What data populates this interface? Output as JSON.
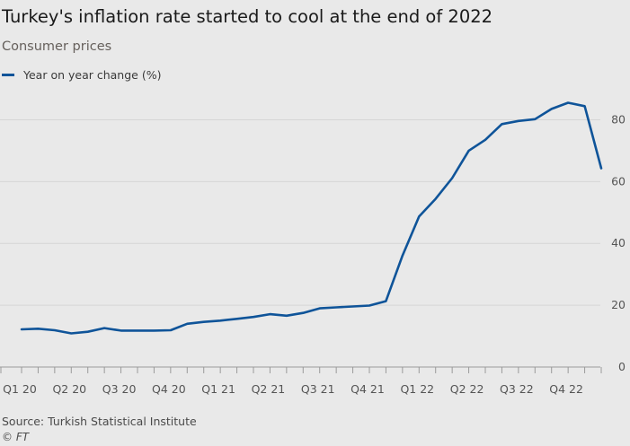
{
  "title": "Turkey's inflation rate started to cool at the end of 2022",
  "subtitle": "Consumer prices",
  "source": "Source: Turkish Statistical Institute",
  "copyright": "© FT",
  "colors": {
    "background": "#e9e9e9",
    "line": "#0f5499",
    "grid": "#d6d6d6"
  },
  "chart_data": {
    "type": "line",
    "title": "Turkey's inflation rate started to cool at the end of 2022",
    "subtitle": "Consumer prices",
    "xlabel": "",
    "ylabel": "",
    "ylim": [
      0,
      90
    ],
    "yticks": [
      0,
      20,
      40,
      60,
      80
    ],
    "y_axis_side": "right",
    "grid": true,
    "legend_position": "top-left",
    "x_tick_labels": [
      "Q1 20",
      "Q2 20",
      "Q3 20",
      "Q4 20",
      "Q1 21",
      "Q2 21",
      "Q3 21",
      "Q4 21",
      "Q1 22",
      "Q2 22",
      "Q3 22",
      "Q4 22"
    ],
    "x": [
      "Jan 2020",
      "Feb 2020",
      "Mar 2020",
      "Apr 2020",
      "May 2020",
      "Jun 2020",
      "Jul 2020",
      "Aug 2020",
      "Sep 2020",
      "Oct 2020",
      "Nov 2020",
      "Dec 2020",
      "Jan 2021",
      "Feb 2021",
      "Mar 2021",
      "Apr 2021",
      "May 2021",
      "Jun 2021",
      "Jul 2021",
      "Aug 2021",
      "Sep 2021",
      "Oct 2021",
      "Nov 2021",
      "Dec 2021",
      "Jan 2022",
      "Feb 2022",
      "Mar 2022",
      "Apr 2022",
      "May 2022",
      "Jun 2022",
      "Jul 2022",
      "Aug 2022",
      "Sep 2022",
      "Oct 2022",
      "Nov 2022",
      "Dec 2022"
    ],
    "series": [
      {
        "name": "Year on year change (%)",
        "values": [
          12.2,
          12.4,
          11.9,
          10.9,
          11.4,
          12.6,
          11.8,
          11.8,
          11.8,
          11.9,
          14.0,
          14.6,
          15.0,
          15.6,
          16.2,
          17.1,
          16.6,
          17.5,
          19.0,
          19.3,
          19.6,
          19.9,
          21.3,
          36.1,
          48.7,
          54.4,
          61.1,
          70.0,
          73.5,
          78.6,
          79.6,
          80.2,
          83.5,
          85.5,
          84.4,
          64.3
        ]
      }
    ]
  }
}
